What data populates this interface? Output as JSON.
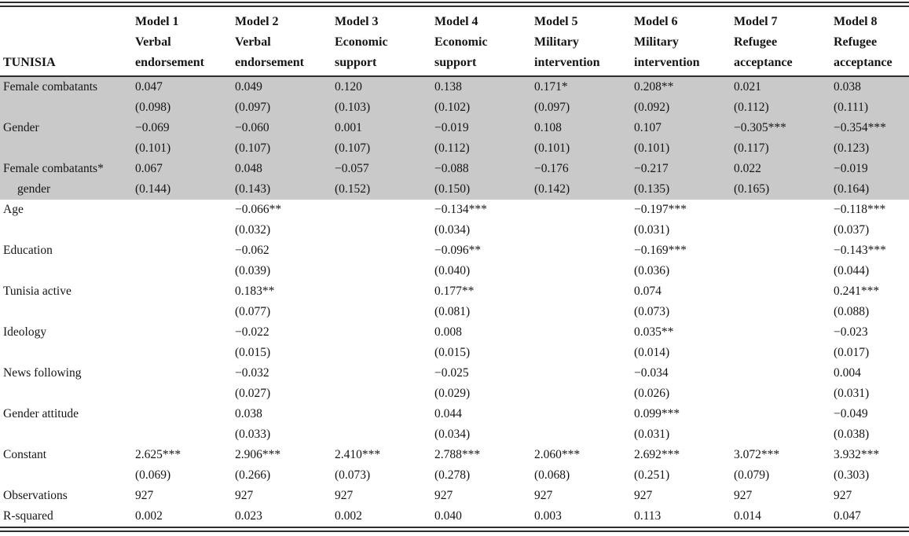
{
  "table": {
    "row_header_title": "TUNISIA",
    "columns": [
      {
        "model": "Model 1",
        "dv_line1": "Verbal",
        "dv_line2": "endorsement"
      },
      {
        "model": "Model 2",
        "dv_line1": "Verbal",
        "dv_line2": "endorsement"
      },
      {
        "model": "Model 3",
        "dv_line1": "Economic",
        "dv_line2": "support"
      },
      {
        "model": "Model 4",
        "dv_line1": "Economic",
        "dv_line2": "support"
      },
      {
        "model": "Model 5",
        "dv_line1": "Military",
        "dv_line2": "intervention"
      },
      {
        "model": "Model 6",
        "dv_line1": "Military",
        "dv_line2": "intervention"
      },
      {
        "model": "Model 7",
        "dv_line1": "Refugee",
        "dv_line2": "acceptance"
      },
      {
        "model": "Model 8",
        "dv_line1": "Refugee",
        "dv_line2": "acceptance"
      }
    ],
    "rows": [
      {
        "label": "Female combatants",
        "label2": "",
        "shaded": true,
        "coefs": [
          "0.047",
          "0.049",
          "0.120",
          "0.138",
          "0.171*",
          "0.208**",
          "0.021",
          "0.038"
        ],
        "ses": [
          "(0.098)",
          "(0.097)",
          "(0.103)",
          "(0.102)",
          "(0.097)",
          "(0.092)",
          "(0.112)",
          "(0.111)"
        ]
      },
      {
        "label": "Gender",
        "label2": "",
        "shaded": true,
        "coefs": [
          "−0.069",
          "−0.060",
          "0.001",
          "−0.019",
          "0.108",
          "0.107",
          "−0.305***",
          "−0.354***"
        ],
        "ses": [
          "(0.101)",
          "(0.107)",
          "(0.107)",
          "(0.112)",
          "(0.101)",
          "(0.101)",
          "(0.117)",
          "(0.123)"
        ]
      },
      {
        "label": "Female combatants*",
        "label2": "gender",
        "shaded": true,
        "coefs": [
          "0.067",
          "0.048",
          "−0.057",
          "−0.088",
          "−0.176",
          "−0.217",
          "0.022",
          "−0.019"
        ],
        "ses": [
          "(0.144)",
          "(0.143)",
          "(0.152)",
          "(0.150)",
          "(0.142)",
          "(0.135)",
          "(0.165)",
          "(0.164)"
        ]
      },
      {
        "label": "Age",
        "label2": "",
        "shaded": false,
        "coefs": [
          "",
          "−0.066**",
          "",
          "−0.134***",
          "",
          "−0.197***",
          "",
          "−0.118***"
        ],
        "ses": [
          "",
          "(0.032)",
          "",
          "(0.034)",
          "",
          "(0.031)",
          "",
          "(0.037)"
        ]
      },
      {
        "label": "Education",
        "label2": "",
        "shaded": false,
        "coefs": [
          "",
          "−0.062",
          "",
          "−0.096**",
          "",
          "−0.169***",
          "",
          "−0.143***"
        ],
        "ses": [
          "",
          "(0.039)",
          "",
          "(0.040)",
          "",
          "(0.036)",
          "",
          "(0.044)"
        ]
      },
      {
        "label": "Tunisia active",
        "label2": "",
        "shaded": false,
        "coefs": [
          "",
          "0.183**",
          "",
          "0.177**",
          "",
          "0.074",
          "",
          "0.241***"
        ],
        "ses": [
          "",
          "(0.077)",
          "",
          "(0.081)",
          "",
          "(0.073)",
          "",
          "(0.088)"
        ]
      },
      {
        "label": "Ideology",
        "label2": "",
        "shaded": false,
        "coefs": [
          "",
          "−0.022",
          "",
          "0.008",
          "",
          "0.035**",
          "",
          "−0.023"
        ],
        "ses": [
          "",
          "(0.015)",
          "",
          "(0.015)",
          "",
          "(0.014)",
          "",
          "(0.017)"
        ]
      },
      {
        "label": "News following",
        "label2": "",
        "shaded": false,
        "coefs": [
          "",
          "−0.032",
          "",
          "−0.025",
          "",
          "−0.034",
          "",
          "0.004"
        ],
        "ses": [
          "",
          "(0.027)",
          "",
          "(0.029)",
          "",
          "(0.026)",
          "",
          "(0.031)"
        ]
      },
      {
        "label": "Gender attitude",
        "label2": "",
        "shaded": false,
        "coefs": [
          "",
          "0.038",
          "",
          "0.044",
          "",
          "0.099***",
          "",
          "−0.049"
        ],
        "ses": [
          "",
          "(0.033)",
          "",
          "(0.034)",
          "",
          "(0.031)",
          "",
          "(0.038)"
        ]
      },
      {
        "label": "Constant",
        "label2": "",
        "shaded": false,
        "coefs": [
          "2.625***",
          "2.906***",
          "2.410***",
          "2.788***",
          "2.060***",
          "2.692***",
          "3.072***",
          "3.932***"
        ],
        "ses": [
          "(0.069)",
          "(0.266)",
          "(0.073)",
          "(0.278)",
          "(0.068)",
          "(0.251)",
          "(0.079)",
          "(0.303)"
        ]
      }
    ],
    "stats_rows": [
      {
        "label": "Observations",
        "values": [
          "927",
          "927",
          "927",
          "927",
          "927",
          "927",
          "927",
          "927"
        ]
      },
      {
        "label": "R-squared",
        "values": [
          "0.002",
          "0.023",
          "0.002",
          "0.040",
          "0.003",
          "0.113",
          "0.014",
          "0.047"
        ]
      }
    ],
    "colors": {
      "shaded_row_bg": "#c9c9c9",
      "rule": "#2e2e2e",
      "text": "#151515"
    }
  }
}
